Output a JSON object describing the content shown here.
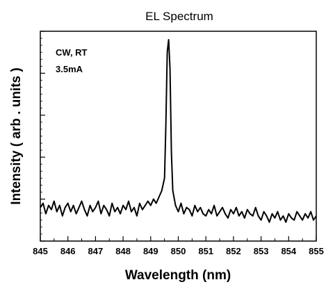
{
  "chart_data": {
    "type": "line",
    "title": "EL Spectrum",
    "xlabel": "Wavelength (nm)",
    "ylabel": "Intensity ( arb . units )",
    "xlim": [
      845,
      855
    ],
    "ylim": [
      0,
      1
    ],
    "x_ticks": [
      "845",
      "846",
      "847",
      "848",
      "849",
      "850",
      "851",
      "852",
      "853",
      "854",
      "855"
    ],
    "y_tick_labels_shown": false,
    "grid": false,
    "legend": "none",
    "annotations": [
      "CW, RT",
      "3.5mA"
    ],
    "line_color": "#000000",
    "series": [
      {
        "x": [
          845.0,
          845.1,
          845.2,
          845.3,
          845.4,
          845.5,
          845.6,
          845.7,
          845.8,
          845.9,
          846.0,
          846.1,
          846.2,
          846.3,
          846.4,
          846.5,
          846.6,
          846.7,
          846.8,
          846.9,
          847.0,
          847.1,
          847.2,
          847.3,
          847.4,
          847.5,
          847.6,
          847.7,
          847.8,
          847.9,
          848.0,
          848.1,
          848.2,
          848.3,
          848.4,
          848.5,
          848.6,
          848.7,
          848.8,
          848.9,
          849.0,
          849.1,
          849.2,
          849.3,
          849.4,
          849.5,
          849.55,
          849.6,
          849.65,
          849.7,
          849.75,
          849.8,
          849.9,
          850.0,
          850.1,
          850.2,
          850.3,
          850.4,
          850.5,
          850.6,
          850.7,
          850.8,
          850.9,
          851.0,
          851.1,
          851.2,
          851.3,
          851.4,
          851.5,
          851.6,
          851.7,
          851.8,
          851.9,
          852.0,
          852.1,
          852.2,
          852.3,
          852.4,
          852.5,
          852.6,
          852.7,
          852.8,
          852.9,
          853.0,
          853.1,
          853.2,
          853.3,
          853.4,
          853.5,
          853.6,
          853.7,
          853.8,
          853.9,
          854.0,
          854.1,
          854.2,
          854.3,
          854.4,
          854.5,
          854.6,
          854.7,
          854.8,
          854.9,
          855.0
        ],
        "y": [
          0.16,
          0.18,
          0.13,
          0.17,
          0.15,
          0.19,
          0.14,
          0.17,
          0.12,
          0.16,
          0.18,
          0.14,
          0.17,
          0.13,
          0.16,
          0.19,
          0.15,
          0.12,
          0.17,
          0.14,
          0.16,
          0.19,
          0.13,
          0.17,
          0.15,
          0.12,
          0.18,
          0.14,
          0.16,
          0.13,
          0.17,
          0.15,
          0.19,
          0.14,
          0.16,
          0.12,
          0.18,
          0.15,
          0.17,
          0.19,
          0.17,
          0.2,
          0.18,
          0.21,
          0.24,
          0.3,
          0.55,
          0.9,
          0.96,
          0.82,
          0.42,
          0.24,
          0.17,
          0.14,
          0.18,
          0.13,
          0.16,
          0.15,
          0.12,
          0.17,
          0.14,
          0.16,
          0.13,
          0.12,
          0.15,
          0.13,
          0.17,
          0.12,
          0.14,
          0.16,
          0.13,
          0.11,
          0.15,
          0.13,
          0.16,
          0.12,
          0.14,
          0.11,
          0.15,
          0.13,
          0.12,
          0.16,
          0.12,
          0.1,
          0.14,
          0.12,
          0.09,
          0.13,
          0.11,
          0.14,
          0.1,
          0.12,
          0.09,
          0.13,
          0.11,
          0.1,
          0.14,
          0.12,
          0.1,
          0.13,
          0.11,
          0.14,
          0.1,
          0.12
        ]
      }
    ]
  }
}
